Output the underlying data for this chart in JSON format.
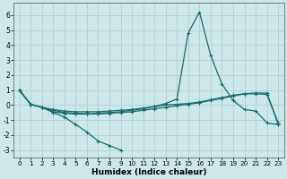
{
  "xlabel": "Humidex (Indice chaleur)",
  "background_color": "#cce8e8",
  "grid_color": "#aacccc",
  "line_color": "#1a6b6b",
  "xlim": [
    -0.5,
    23.5
  ],
  "ylim": [
    -3.5,
    6.8
  ],
  "yticks": [
    -3,
    -2,
    -1,
    0,
    1,
    2,
    3,
    4,
    5,
    6
  ],
  "xticks": [
    0,
    1,
    2,
    3,
    4,
    5,
    6,
    7,
    8,
    9,
    10,
    11,
    12,
    13,
    14,
    15,
    16,
    17,
    18,
    19,
    20,
    21,
    22,
    23
  ],
  "curve_bottom_x": [
    0,
    1,
    2,
    3,
    4,
    5,
    6,
    7,
    8,
    9
  ],
  "curve_bottom_y": [
    1.0,
    0.05,
    -0.15,
    -0.5,
    -0.8,
    -1.3,
    -1.8,
    -2.4,
    -2.7,
    -3.0
  ],
  "curve_peak_x": [
    0,
    1,
    2,
    3,
    4,
    5,
    6,
    7,
    8,
    9,
    10,
    11,
    12,
    13,
    14,
    15,
    16,
    17,
    18,
    19,
    20,
    21,
    22,
    23
  ],
  "curve_peak_y": [
    1.0,
    0.05,
    -0.15,
    -0.45,
    -0.55,
    -0.6,
    -0.6,
    -0.55,
    -0.5,
    -0.45,
    -0.35,
    -0.25,
    -0.1,
    0.1,
    0.4,
    4.8,
    6.2,
    3.3,
    1.4,
    0.3,
    -0.3,
    -0.4,
    -1.2,
    -1.3
  ],
  "curve_flat1_x": [
    0,
    1,
    2,
    3,
    4,
    5,
    6,
    7,
    8,
    9,
    10,
    11,
    12,
    13,
    14,
    15,
    16,
    17,
    18,
    19,
    20,
    21,
    22,
    23
  ],
  "curve_flat1_y": [
    1.0,
    0.05,
    -0.15,
    -0.3,
    -0.4,
    -0.45,
    -0.45,
    -0.45,
    -0.4,
    -0.35,
    -0.3,
    -0.2,
    -0.1,
    0.0,
    0.05,
    0.1,
    0.2,
    0.35,
    0.5,
    0.65,
    0.75,
    0.75,
    0.7,
    -1.2
  ],
  "curve_flat2_x": [
    0,
    1,
    2,
    3,
    4,
    5,
    6,
    7,
    8,
    9,
    10,
    11,
    12,
    13,
    14,
    15,
    16,
    17,
    18,
    19,
    20,
    21,
    22,
    23
  ],
  "curve_flat2_y": [
    1.0,
    0.05,
    -0.15,
    -0.35,
    -0.5,
    -0.55,
    -0.58,
    -0.6,
    -0.55,
    -0.5,
    -0.45,
    -0.35,
    -0.25,
    -0.15,
    -0.05,
    0.05,
    0.15,
    0.3,
    0.45,
    0.6,
    0.75,
    0.8,
    0.8,
    -1.3
  ]
}
